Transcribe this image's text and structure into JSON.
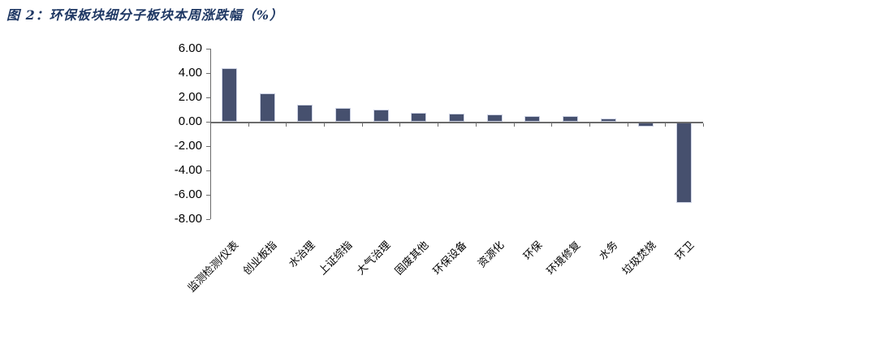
{
  "title": "图 2：环保板块细分子板块本周涨跌幅（%）",
  "title_color": "#1F3864",
  "chart_data": {
    "type": "bar",
    "title": "环保板块细分子板块本周涨跌幅（%）",
    "categories": [
      "监测检测/仪表",
      "创业板指",
      "水治理",
      "上证综指",
      "大气治理",
      "固废其他",
      "环保设备",
      "资源化",
      "环保",
      "环境修复",
      "水务",
      "垃圾焚烧",
      "环卫"
    ],
    "values": [
      4.43,
      2.33,
      1.38,
      1.15,
      1.03,
      0.73,
      0.7,
      0.63,
      0.45,
      0.44,
      0.28,
      -0.33,
      -6.6
    ],
    "xlabel": "",
    "ylabel": "",
    "ylim": [
      -8,
      6
    ],
    "ytick_step": 2,
    "ytick_values": [
      6,
      4,
      2,
      0,
      -2,
      -4,
      -6,
      -8
    ],
    "ytick_labels": [
      "6.00",
      "4.00",
      "2.00",
      "0.00",
      "-2.00",
      "-4.00",
      "-6.00",
      "-8.00"
    ],
    "grid": false,
    "legend": "none",
    "bar_color": "#46506E",
    "bar_border_color": "#CDD2E4",
    "axis_color": "#6B6B6B"
  }
}
